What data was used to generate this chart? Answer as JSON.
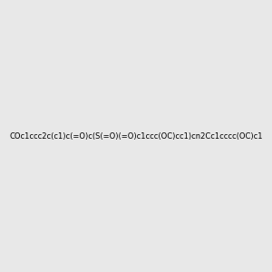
{
  "smiles": "COc1ccc2c(c1)c(=O)c(S(=O)(=O)c1ccc(OC)cc1)cn2Cc1cccc(OC)c1",
  "image_size": 300,
  "background_color": "#e8e8e8",
  "title": ""
}
